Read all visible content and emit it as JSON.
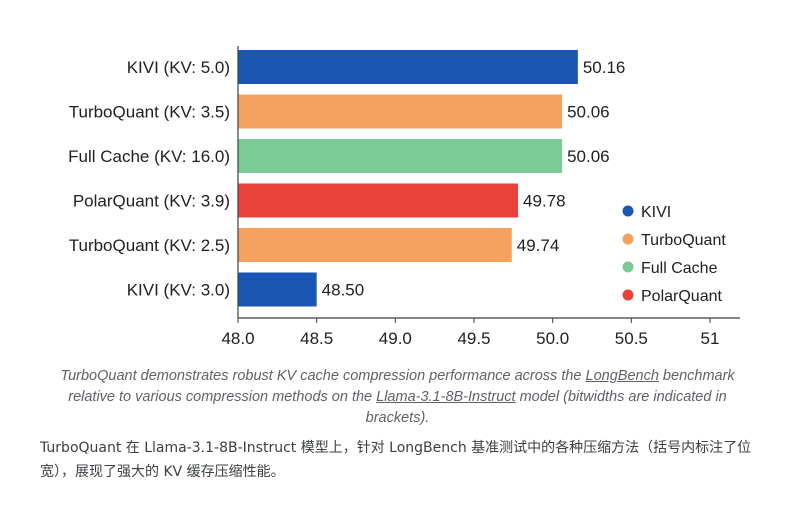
{
  "chart_data": {
    "type": "bar",
    "orientation": "horizontal",
    "categories": [
      "KIVI (KV: 5.0)",
      "TurboQuant (KV: 3.5)",
      "Full Cache (KV: 16.0)",
      "PolarQuant (KV: 3.9)",
      "TurboQuant (KV: 2.5)",
      "KIVI (KV: 3.0)"
    ],
    "values": [
      50.16,
      50.06,
      50.06,
      49.78,
      49.74,
      48.5
    ],
    "value_labels": [
      "50.16",
      "50.06",
      "50.06",
      "49.78",
      "49.74",
      "48.50"
    ],
    "bar_series": [
      "KIVI",
      "TurboQuant",
      "Full Cache",
      "PolarQuant",
      "TurboQuant",
      "KIVI"
    ],
    "xlim": [
      48.0,
      51.0
    ],
    "xticks": [
      48.0,
      48.5,
      49.0,
      49.5,
      50.0,
      50.5,
      51.0
    ],
    "xtick_labels": [
      "48.0",
      "48.5",
      "49.0",
      "49.5",
      "50.0",
      "50.5",
      "51"
    ],
    "grid": false,
    "legend_position": "right",
    "legend": [
      {
        "name": "KIVI",
        "color": "#1a56b3"
      },
      {
        "name": "TurboQuant",
        "color": "#f5a15f"
      },
      {
        "name": "Full Cache",
        "color": "#7bcb97"
      },
      {
        "name": "PolarQuant",
        "color": "#e8423b"
      }
    ]
  },
  "caption": {
    "en_part1": "TurboQuant demonstrates robust KV cache compression performance across the ",
    "en_link1": "LongBench",
    "en_part2": " benchmark relative to various compression methods on the ",
    "en_link2": "Llama-3.1-8B-Instruct",
    "en_part3": " model (bitwidths are indicated in brackets).",
    "zh": "TurboQuant 在 Llama-3.1-8B-Instruct 模型上，针对 LongBench 基准测试中的各种压缩方法（括号内标注了位宽），展现了强大的 KV 缓存压缩性能。"
  }
}
